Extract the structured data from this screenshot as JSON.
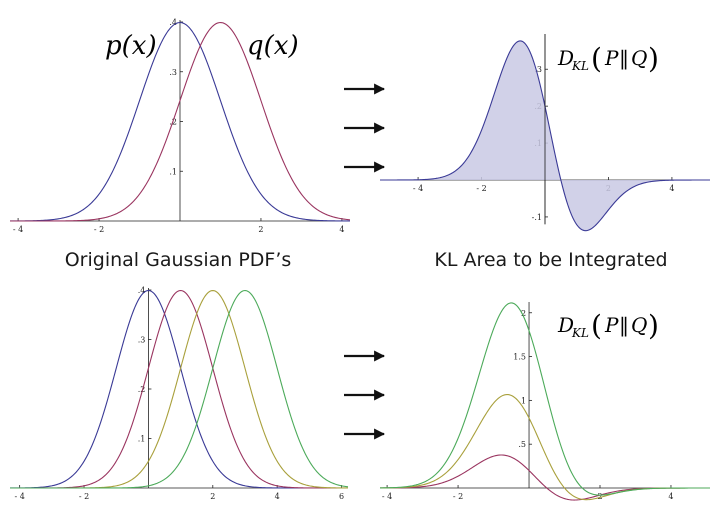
{
  "colors": {
    "p": "#3a3a96",
    "q": "#9a3560",
    "q2": "#a9a03c",
    "q3": "#4caa5a",
    "fill": "#c9c9e4"
  },
  "captions": {
    "top_left": "Original Gaussian PDF’s",
    "top_right": "KL Area to be Integrated"
  },
  "labels": {
    "p": "p(x)",
    "q": "q(x)",
    "d": "D",
    "kl": "KL",
    "paren_open": "(",
    "p_cap": "P",
    "dbar": "‖",
    "q_cap": "Q",
    "paren_close": ")"
  },
  "chart_data": [
    {
      "type": "line",
      "id": "top-left",
      "xlim": [
        -4.2,
        4.2
      ],
      "ylim": [
        0,
        0.4
      ],
      "xticks": [
        -4,
        -2,
        2,
        4
      ],
      "yticks": [
        0.1,
        0.2,
        0.3,
        0.4
      ],
      "series": [
        {
          "name": "p(x)",
          "mean": 0,
          "sd": 1
        },
        {
          "name": "q(x)",
          "mean": 1,
          "sd": 1
        }
      ]
    },
    {
      "type": "area",
      "id": "top-right",
      "xlim": [
        -5.2,
        5.2
      ],
      "ylim": [
        -0.12,
        0.39
      ],
      "xticks": [
        -4,
        -2,
        2,
        4
      ],
      "yticks": [
        -0.1,
        0.1,
        0.2,
        0.3
      ],
      "series": [
        {
          "p": {
            "mean": 0,
            "sd": 1
          },
          "q": {
            "mean": 1,
            "sd": 1
          }
        }
      ]
    },
    {
      "type": "line",
      "id": "bottom-left",
      "xlim": [
        -4.3,
        6.2
      ],
      "ylim": [
        0,
        0.4
      ],
      "xticks": [
        -4,
        -2,
        2,
        4,
        6
      ],
      "yticks": [
        0.1,
        0.2,
        0.3,
        0.4
      ],
      "series": [
        {
          "mean": 0,
          "sd": 1
        },
        {
          "mean": 1,
          "sd": 1
        },
        {
          "mean": 2,
          "sd": 1
        },
        {
          "mean": 3,
          "sd": 1
        }
      ]
    },
    {
      "type": "line",
      "id": "bottom-right",
      "xlim": [
        -4.2,
        5.1
      ],
      "ylim": [
        0,
        2.1
      ],
      "xticks": [
        -4,
        -2,
        2,
        4
      ],
      "yticks": [
        0.5,
        1.0,
        1.5,
        2.0
      ],
      "series": [
        {
          "p": {
            "mean": 0,
            "sd": 1
          },
          "q": {
            "mean": 1,
            "sd": 1
          }
        },
        {
          "p": {
            "mean": 0,
            "sd": 1
          },
          "q": {
            "mean": 2,
            "sd": 1
          }
        },
        {
          "p": {
            "mean": 0,
            "sd": 1
          },
          "q": {
            "mean": 3,
            "sd": 1
          }
        }
      ]
    }
  ]
}
